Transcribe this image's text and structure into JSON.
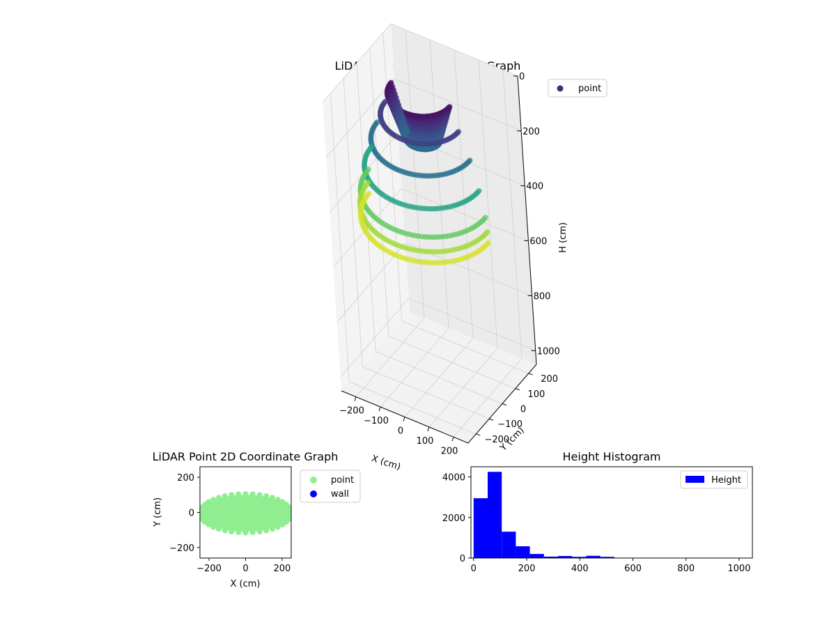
{
  "chart_data": [
    {
      "type": "scatter3d",
      "title": "LiDAR Point 3D Coordinate Graph",
      "xlabel": "X (cm)",
      "ylabel": "Y (cm)",
      "zlabel": "H (cm)",
      "xticks": [
        "−200",
        "−100",
        "0",
        "100",
        "200"
      ],
      "yticks": [
        "−200",
        "−100",
        "0",
        "100",
        "200"
      ],
      "zticks": [
        "0",
        "200",
        "400",
        "600",
        "800",
        "1000"
      ],
      "xlim": [
        -260,
        260
      ],
      "ylim": [
        -260,
        260
      ],
      "zlim": [
        0,
        1050
      ],
      "zinverted": true,
      "grid": true,
      "legend": {
        "placement": "upper-right-outside",
        "entries": [
          "point"
        ]
      },
      "colormap": "viridis",
      "marker_color": "#482878",
      "rings": [
        {
          "h": 20,
          "r": 120,
          "half": "front",
          "layers": 14
        },
        {
          "h": 100,
          "r": 150,
          "half": "front",
          "layers": 1
        },
        {
          "h": 190,
          "r": 190,
          "half": "front",
          "layers": 1
        },
        {
          "h": 290,
          "r": 220,
          "half": "front",
          "layers": 1
        },
        {
          "h": 380,
          "r": 240,
          "half": "front",
          "layers": 1
        },
        {
          "h": 430,
          "r": 245,
          "half": "front",
          "layers": 1
        },
        {
          "h": 470,
          "r": 245,
          "half": "front",
          "layers": 1
        }
      ]
    },
    {
      "type": "scatter",
      "title": "LiDAR Point 2D Coordinate Graph",
      "xlabel": "X (cm)",
      "ylabel": "Y (cm)",
      "xticks": [
        -200,
        0,
        200
      ],
      "yticks": [
        -200,
        0,
        200
      ],
      "xlim": [
        -250,
        250
      ],
      "ylim": [
        -260,
        260
      ],
      "series": [
        {
          "name": "point",
          "color": "#90ee90",
          "extent": {
            "xmin": -245,
            "xmax": 245,
            "ymin": -110,
            "ymax": 100
          }
        },
        {
          "name": "wall",
          "color": "#0000ff"
        }
      ],
      "legend": {
        "placement": "upper-right-outside"
      }
    },
    {
      "type": "bar",
      "title": "Height Histogram",
      "xticks": [
        0,
        200,
        400,
        600,
        800,
        1000
      ],
      "yticks": [
        0,
        2000,
        4000
      ],
      "xlim": [
        -10,
        1050
      ],
      "ylim": [
        0,
        4500
      ],
      "series": [
        {
          "name": "Height",
          "color": "#0000ff",
          "bin_width": 53,
          "bin_start": 0,
          "values": [
            2950,
            4250,
            1300,
            580,
            200,
            70,
            100,
            60,
            110,
            60,
            0,
            0,
            0,
            0,
            0,
            0,
            0,
            0,
            0,
            0
          ]
        }
      ],
      "legend": {
        "placement": "upper-right"
      }
    }
  ]
}
